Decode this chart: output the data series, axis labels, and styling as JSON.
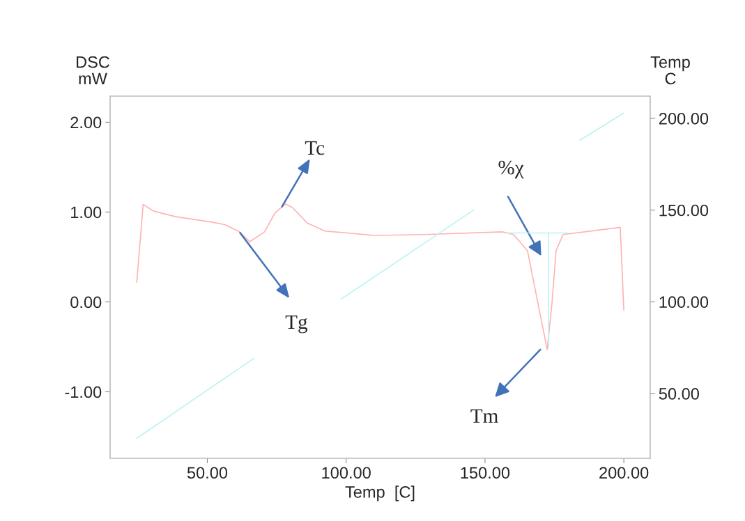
{
  "chart_data": {
    "type": "line",
    "xlabel": "Temp  [C]",
    "ylabel": "DSC\nmW",
    "y2label": "Temp\nC",
    "xlim": [
      15,
      209.5
    ],
    "ylim": [
      -1.74,
      2.29
    ],
    "y2lim": [
      14.7,
      212.1
    ],
    "xticks": [
      {
        "value": 50,
        "label": "50.00"
      },
      {
        "value": 100,
        "label": "100.00"
      },
      {
        "value": 150,
        "label": "150.00"
      },
      {
        "value": 200,
        "label": "200.00"
      }
    ],
    "yticks": [
      {
        "value": -1,
        "label": "-1.00"
      },
      {
        "value": 0,
        "label": "0.00"
      },
      {
        "value": 1,
        "label": "1.00"
      },
      {
        "value": 2,
        "label": "2.00"
      }
    ],
    "y2ticks": [
      {
        "value": 50,
        "label": "50.00"
      },
      {
        "value": 100,
        "label": "100.00"
      },
      {
        "value": 150,
        "label": "150.00"
      },
      {
        "value": 200,
        "label": "200.00"
      }
    ],
    "grid": false,
    "legend": false,
    "marker": "none",
    "line_style": "solid",
    "series": [
      {
        "color": "#ffb3b3",
        "x": [
          24.6,
          26.9,
          30.7,
          38.4,
          51.3,
          56.3,
          61.6,
          65.3,
          70.6,
          74.4,
          78.1,
          80.7,
          85.9,
          92.2,
          110.3,
          128.1,
          156.3,
          160.3,
          165.3,
          169.1,
          172.4,
          174.1,
          175.6,
          178.1,
          185.9,
          198.7,
          200
        ],
        "values": [
          0.22,
          1.085,
          1.01,
          0.95,
          0.89,
          0.86,
          0.78,
          0.67,
          0.78,
          0.99,
          1.09,
          1.05,
          0.88,
          0.79,
          0.74,
          0.75,
          0.78,
          0.75,
          0.57,
          -0.02,
          -0.53,
          -0.02,
          0.57,
          0.75,
          0.78,
          0.83,
          -0.09
        ]
      },
      {
        "color": "#b8f4f4",
        "axis": "y2",
        "x": [
          24.6,
          66.8,
          82,
          98.2,
          146.0,
          165,
          184.2,
          200
        ],
        "values": [
          25.6,
          69.2,
          null,
          101.5,
          150.1,
          null,
          188.1,
          202.9
        ]
      },
      {
        "color": "#b8f4f4",
        "x": [
          157.8,
          179.9
        ],
        "values": [
          0.767,
          0.767
        ]
      },
      {
        "color": "#b8f4f4",
        "x": [
          172.9,
          172.9
        ],
        "values": [
          0.767,
          -0.51
        ]
      }
    ],
    "annotations": [
      {
        "text": "Tc",
        "x": 76.9,
        "y": 1.06
      },
      {
        "text": "Tg",
        "x": 61.8,
        "y": 0.77
      },
      "%χ",
      "Tm"
    ]
  }
}
